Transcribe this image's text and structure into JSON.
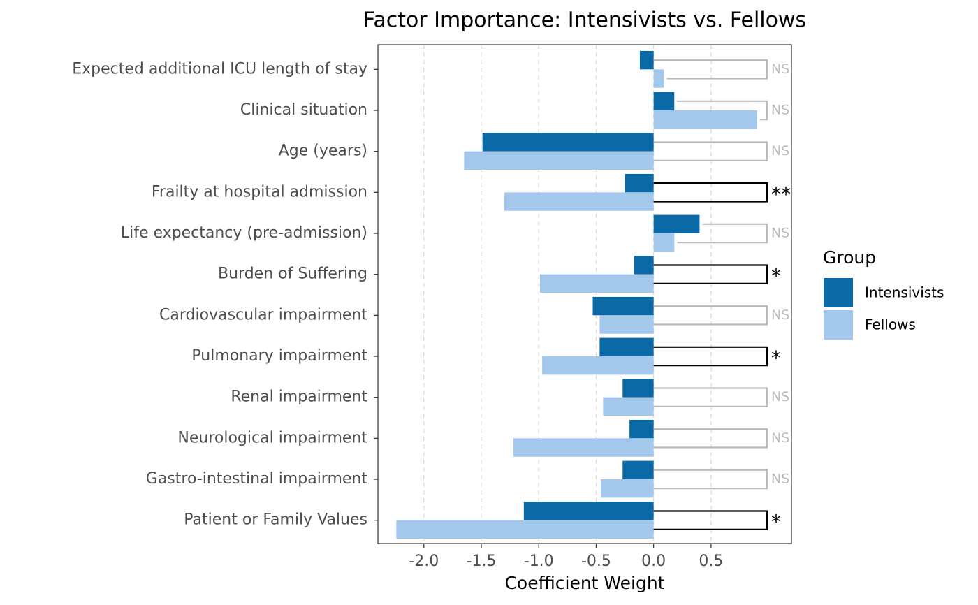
{
  "chart_data": {
    "type": "bar",
    "orientation": "horizontal",
    "title": "Factor Importance: Intensivists vs. Fellows",
    "x_label": "Coefficient Weight",
    "legend_title": "Group",
    "categories": [
      "Expected additional ICU length of stay",
      "Clinical situation",
      "Age (years)",
      "Frailty at hospital admission",
      "Life expectancy (pre-admission)",
      "Burden of Suffering",
      "Cardiovascular impairment",
      "Pulmonary impairment",
      "Renal impairment",
      "Neurological impairment",
      "Gastro-intestinal impairment",
      "Patient or Family Values"
    ],
    "series": [
      {
        "name": "Intensivists",
        "color": "#0b6aa5",
        "values": [
          -0.12,
          0.18,
          -1.49,
          -0.25,
          0.4,
          -0.17,
          -0.53,
          -0.47,
          -0.27,
          -0.21,
          -0.27,
          -1.13
        ]
      },
      {
        "name": "Fellows",
        "color": "#a3c8ec",
        "values": [
          0.09,
          0.9,
          -1.65,
          -1.3,
          0.18,
          -0.99,
          -0.47,
          -0.97,
          -0.44,
          -1.22,
          -0.46,
          -2.24
        ]
      }
    ],
    "significance": [
      {
        "label": "NS",
        "color": "#bbbbbb"
      },
      {
        "label": "NS",
        "color": "#bbbbbb"
      },
      {
        "label": "NS",
        "color": "#bbbbbb"
      },
      {
        "label": "**",
        "color": "#000000"
      },
      {
        "label": "NS",
        "color": "#bbbbbb"
      },
      {
        "label": "*",
        "color": "#000000"
      },
      {
        "label": "NS",
        "color": "#bbbbbb"
      },
      {
        "label": "*",
        "color": "#000000"
      },
      {
        "label": "NS",
        "color": "#bbbbbb"
      },
      {
        "label": "NS",
        "color": "#bbbbbb"
      },
      {
        "label": "NS",
        "color": "#bbbbbb"
      },
      {
        "label": "*",
        "color": "#000000"
      }
    ],
    "xlim": [
      -2.4,
      1.2
    ],
    "xticks": [
      {
        "value": -2,
        "label": "-2.0"
      },
      {
        "value": -1.5,
        "label": "-1.5"
      },
      {
        "value": -1,
        "label": "-1.0"
      },
      {
        "value": -0.5,
        "label": "-0.5"
      },
      {
        "value": 0,
        "label": "0.0"
      },
      0.5
    ],
    "grid": true
  }
}
